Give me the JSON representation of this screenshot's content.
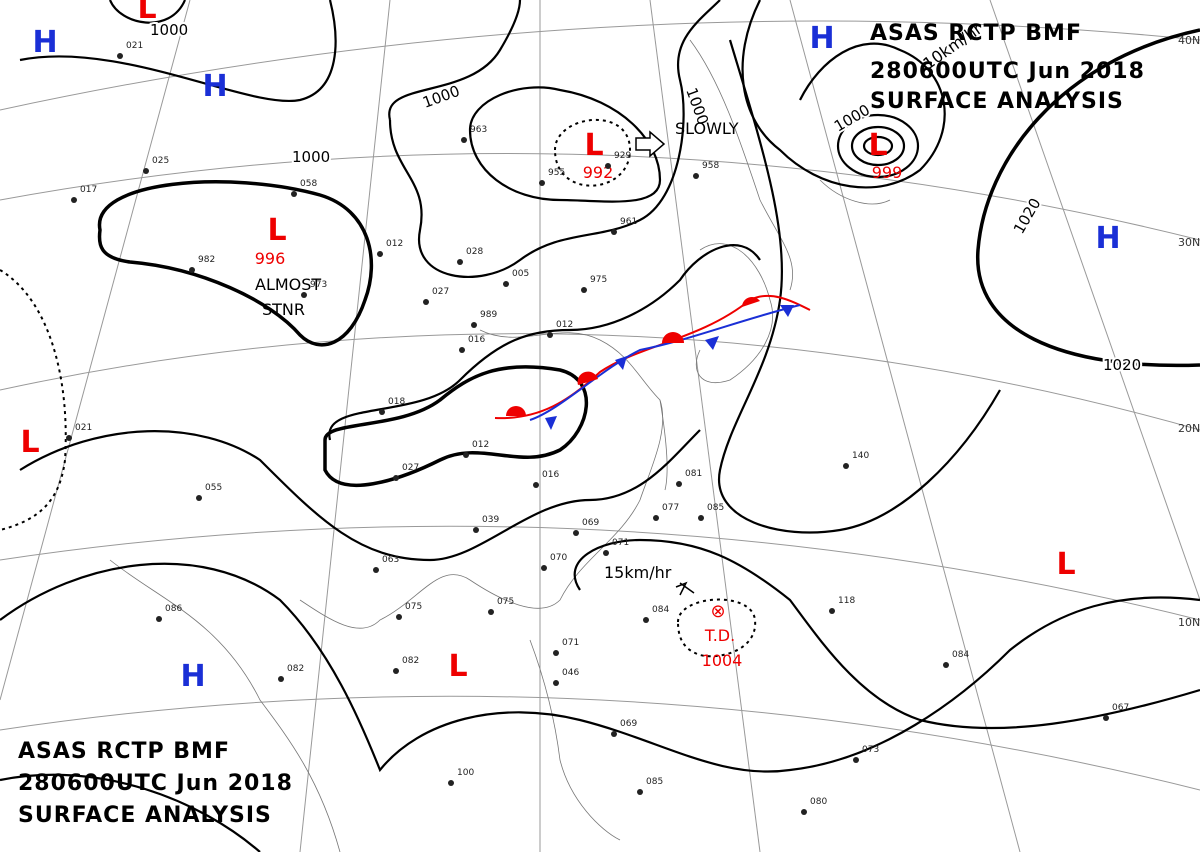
{
  "header": {
    "lines": [
      "ASAS    RCTP    BMF",
      "280600UTC    Jun    2018",
      "SURFACE  ANALYSIS"
    ]
  },
  "footer": {
    "lines": [
      "ASAS    RCTP    BMF",
      "280600UTC    Jun    2018",
      "SURFACE  ANALYSIS"
    ]
  },
  "systems": [
    {
      "type": "H"
    },
    {
      "type": "H"
    },
    {
      "type": "H"
    },
    {
      "type": "H"
    },
    {
      "type": "H"
    },
    {
      "type": "L"
    },
    {
      "type": "L",
      "pressure": "996"
    },
    {
      "type": "L",
      "pressure": "992"
    },
    {
      "type": "L",
      "pressure": "999"
    },
    {
      "type": "L"
    },
    {
      "type": "L"
    },
    {
      "type": "L"
    }
  ],
  "tropical_depression": {
    "label": "T.D.",
    "pressure": "1004"
  },
  "isobar_labels": [
    "1000",
    "1000",
    "1000",
    "1000",
    "1000",
    "1020",
    "1020"
  ],
  "latitude_labels": [
    "40N",
    "30N",
    "20N",
    "10N"
  ],
  "annotations": [
    "SLOWLY",
    "ALMOST",
    "STNR",
    "15km/hr",
    "10km/hr"
  ],
  "stations": [
    "021",
    "017",
    "025",
    "058",
    "982",
    "973",
    "963",
    "955",
    "929",
    "958",
    "961",
    "012",
    "028",
    "027",
    "005",
    "975",
    "989",
    "016",
    "018",
    "012",
    "027",
    "016",
    "039",
    "069",
    "071",
    "070",
    "075",
    "063",
    "075",
    "082",
    "082",
    "084",
    "085",
    "077",
    "081",
    "140",
    "118",
    "084",
    "067",
    "073",
    "080",
    "100",
    "071",
    "046",
    "069",
    "085",
    "021",
    "086",
    "055",
    "012"
  ]
}
